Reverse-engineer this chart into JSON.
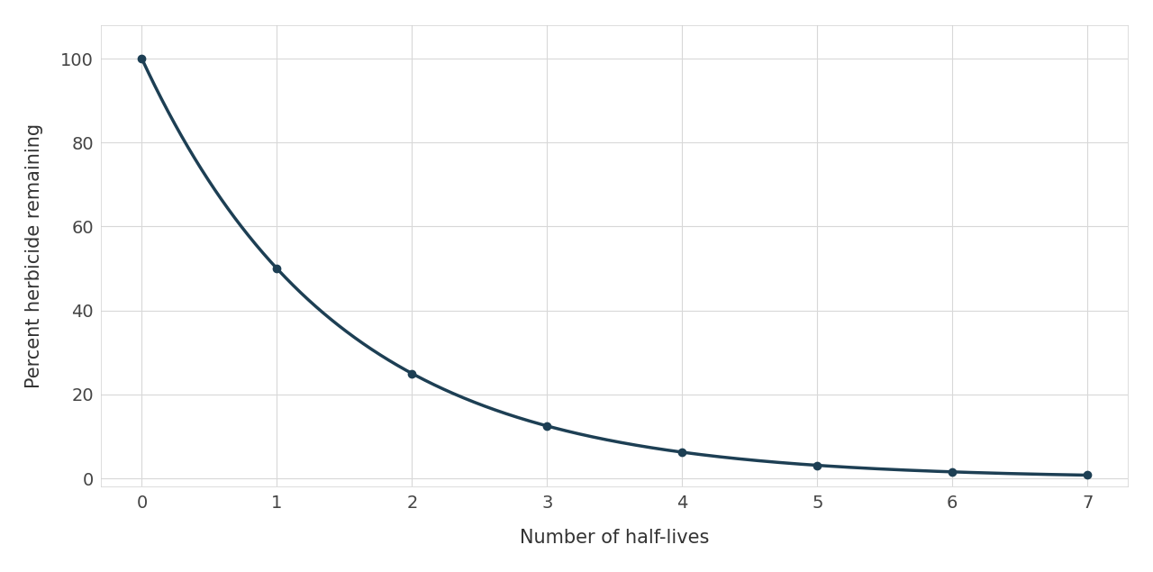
{
  "x_points": [
    0,
    1,
    2,
    3,
    4,
    5,
    6,
    7
  ],
  "y_points": [
    100,
    50,
    25,
    12.5,
    6.25,
    3.125,
    1.5625,
    0.78125
  ],
  "line_color": "#1d3f54",
  "marker_color": "#1d3f54",
  "background_color": "#ffffff",
  "plot_bg_color": "#ffffff",
  "grid_color": "#d8d8d8",
  "xlabel": "Number of half-lives",
  "ylabel": "Percent herbicide remaining",
  "xlim": [
    -0.3,
    7.3
  ],
  "ylim": [
    -2,
    108
  ],
  "xticks": [
    0,
    1,
    2,
    3,
    4,
    5,
    6,
    7
  ],
  "yticks": [
    0,
    20,
    40,
    60,
    80,
    100
  ],
  "xlabel_fontsize": 15,
  "ylabel_fontsize": 15,
  "tick_fontsize": 14,
  "line_width": 2.5,
  "marker_size": 6
}
